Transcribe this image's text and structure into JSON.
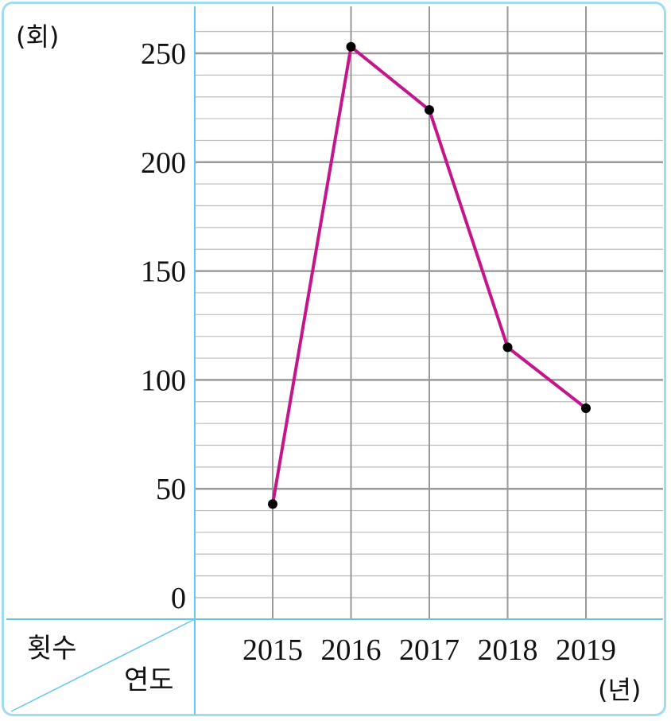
{
  "chart_data": {
    "type": "line",
    "categories": [
      "2015",
      "2016",
      "2017",
      "2018",
      "2019"
    ],
    "series": [
      {
        "values": [
          43,
          253,
          224,
          115,
          87
        ]
      }
    ],
    "y_ticks": [
      "0",
      "50",
      "100",
      "150",
      "200",
      "250"
    ],
    "ylim": [
      0,
      260
    ],
    "y_unit": "(회)",
    "x_unit": "(년)",
    "corner_top_label": "횟수",
    "corner_bottom_label": "연도",
    "grid": true,
    "line_color": "#c4168c",
    "marker_color": "#000000",
    "major_grid_color": "#999999",
    "minor_grid_color": "#bdbdbd",
    "axis_color": "#67c7ea"
  }
}
